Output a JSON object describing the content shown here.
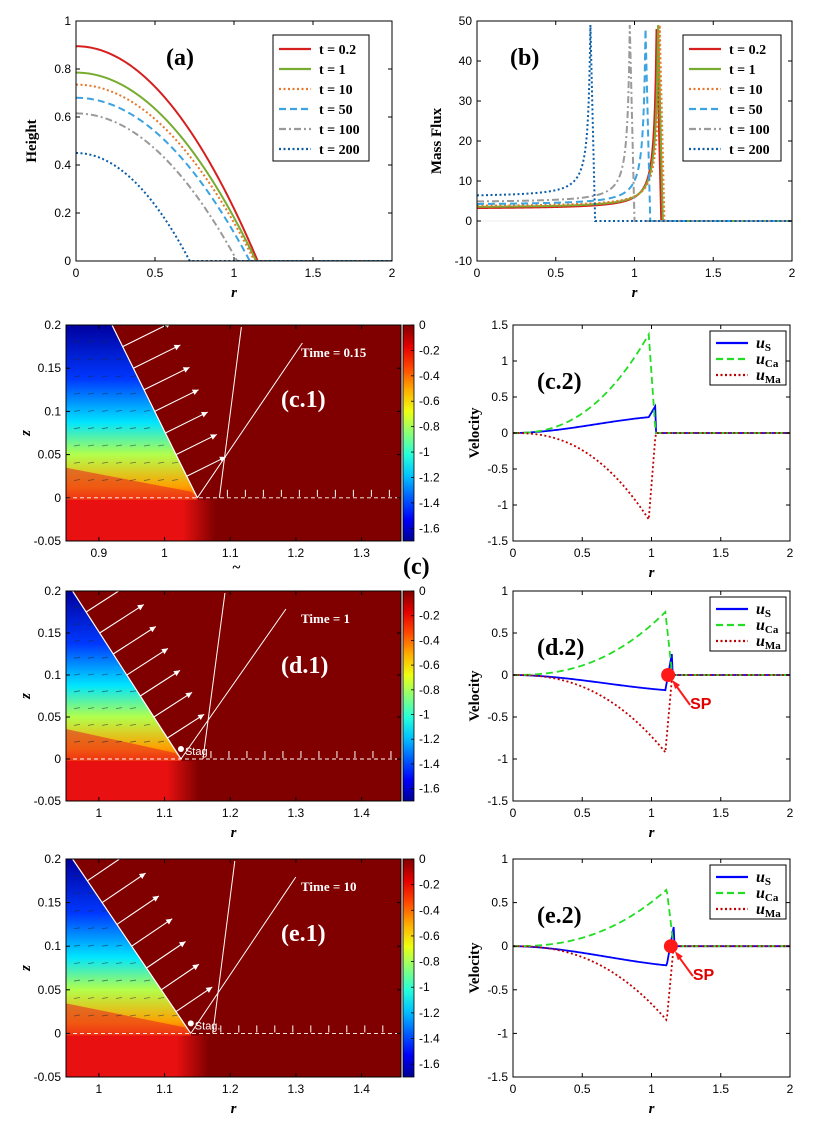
{
  "figure": {
    "center_label": "(c)",
    "x_label_cutoff": "~"
  },
  "chart_data": [
    {
      "id": "a",
      "type": "line",
      "panel_label": "(a)",
      "xlabel": "r",
      "ylabel": "Height",
      "xlim": [
        0,
        2
      ],
      "ylim": [
        0,
        1
      ],
      "xticks": [
        0,
        0.5,
        1,
        1.5,
        2
      ],
      "yticks": [
        0,
        0.2,
        0.4,
        0.6,
        0.8,
        1
      ],
      "legend_location": "top-right",
      "series": [
        {
          "name": "t = 0.2",
          "color": "#d62020",
          "dash": "solid",
          "h0": 0.895,
          "rc": 1.15
        },
        {
          "name": "t = 1",
          "color": "#77ac30",
          "dash": "solid",
          "h0": 0.785,
          "rc": 1.14
        },
        {
          "name": "t = 10",
          "color": "#e8772b",
          "dash": "dot",
          "h0": 0.735,
          "rc": 1.13
        },
        {
          "name": "t = 50",
          "color": "#3aa3e0",
          "dash": "dash",
          "h0": 0.68,
          "rc": 1.1
        },
        {
          "name": "t = 100",
          "color": "#9a9a9a",
          "dash": "dashdot",
          "h0": 0.615,
          "rc": 1.02
        },
        {
          "name": "t = 200",
          "color": "#0b5ea8",
          "dash": "dot",
          "h0": 0.45,
          "rc": 0.72
        }
      ]
    },
    {
      "id": "b",
      "type": "line",
      "panel_label": "(b)",
      "xlabel": "r",
      "ylabel": "Mass Flux",
      "xlim": [
        0,
        2
      ],
      "ylim": [
        -10,
        50
      ],
      "xticks": [
        0,
        0.5,
        1,
        1.5,
        2
      ],
      "yticks": [
        -10,
        0,
        10,
        20,
        30,
        40,
        50
      ],
      "legend_location": "top-right",
      "series": [
        {
          "name": "t = 0.2",
          "color": "#d62020",
          "dash": "solid",
          "base": 3.0,
          "peak_r": 1.14,
          "peak": 48
        },
        {
          "name": "t = 1",
          "color": "#77ac30",
          "dash": "solid",
          "base": 3.3,
          "peak_r": 1.15,
          "peak": 49
        },
        {
          "name": "t = 10",
          "color": "#e8772b",
          "dash": "dot",
          "base": 3.6,
          "peak_r": 1.16,
          "peak": 49
        },
        {
          "name": "t = 50",
          "color": "#3aa3e0",
          "dash": "dash",
          "base": 4.0,
          "peak_r": 1.07,
          "peak": 48
        },
        {
          "name": "t = 100",
          "color": "#9a9a9a",
          "dash": "dashdot",
          "base": 4.6,
          "peak_r": 0.97,
          "peak": 49
        },
        {
          "name": "t = 200",
          "color": "#0b5ea8",
          "dash": "dot",
          "base": 6.0,
          "peak_r": 0.72,
          "peak": 49
        }
      ]
    },
    {
      "id": "c1",
      "type": "heatmap",
      "panel_label": "(c.1)",
      "time_label": "Time = 0.15",
      "xlabel": "",
      "ylabel": "z",
      "xlim": [
        0.85,
        1.36
      ],
      "ylim": [
        -0.05,
        0.2
      ],
      "xticks": [
        0.9,
        1,
        1.1,
        1.2,
        1.3
      ],
      "yticks": [
        -0.05,
        0,
        0.05,
        0.1,
        0.15,
        0.2
      ],
      "contact_r": 1.05,
      "top_r": 0.92,
      "stag_label": "",
      "colorbar": {
        "ticks": [
          0,
          -0.2,
          -0.4,
          -0.6,
          -0.8,
          -1,
          -1.2,
          -1.4,
          -1.6
        ],
        "range": [
          -1.7,
          0
        ]
      }
    },
    {
      "id": "c2",
      "type": "line",
      "panel_label": "(c.2)",
      "xlabel": "r",
      "ylabel": "Velocity",
      "xlim": [
        0,
        2
      ],
      "ylim": [
        -1.5,
        1.5
      ],
      "xticks": [
        0,
        0.5,
        1,
        1.5,
        2
      ],
      "yticks": [
        -1.5,
        -1,
        -0.5,
        0,
        0.5,
        1,
        1.5
      ],
      "legend_location": "top-right",
      "rc": 1.03,
      "sp": null,
      "series": [
        {
          "name": "u",
          "sub": "S",
          "color": "#0000ff",
          "dash": "solid",
          "extreme": 0.22,
          "end": 0.38
        },
        {
          "name": "u",
          "sub": "Ca",
          "color": "#22dd22",
          "dash": "dash",
          "extreme": 1.37,
          "end": 1.37
        },
        {
          "name": "u",
          "sub": "Ma",
          "color": "#c00000",
          "dash": "dot",
          "extreme": -1.2,
          "end": -1.2
        }
      ]
    },
    {
      "id": "d1",
      "type": "heatmap",
      "panel_label": "(d.1)",
      "time_label": "Time = 1",
      "xlabel": "r",
      "ylabel": "z",
      "xlim": [
        0.95,
        1.46
      ],
      "ylim": [
        -0.05,
        0.2
      ],
      "xticks": [
        1,
        1.1,
        1.2,
        1.3,
        1.4
      ],
      "yticks": [
        -0.05,
        0,
        0.05,
        0.1,
        0.15,
        0.2
      ],
      "contact_r": 1.125,
      "top_r": 0.96,
      "stag_label": "Stag",
      "colorbar": {
        "ticks": [
          0,
          -0.2,
          -0.4,
          -0.6,
          -0.8,
          -1,
          -1.2,
          -1.4,
          -1.6
        ],
        "range": [
          -1.7,
          0
        ]
      }
    },
    {
      "id": "d2",
      "type": "line",
      "panel_label": "(d.2)",
      "xlabel": "r",
      "ylabel": "Velocity",
      "xlim": [
        0,
        2
      ],
      "ylim": [
        -1.5,
        1
      ],
      "xticks": [
        0,
        0.5,
        1,
        1.5,
        2
      ],
      "yticks": [
        -1.5,
        -1,
        -0.5,
        0,
        0.5,
        1
      ],
      "legend_location": "top-right",
      "rc": 1.15,
      "sp": {
        "r": 1.12,
        "v": 0,
        "label": "SP"
      },
      "series": [
        {
          "name": "u",
          "sub": "S",
          "color": "#0000ff",
          "dash": "solid",
          "extreme": -0.18,
          "end": 0.28
        },
        {
          "name": "u",
          "sub": "Ca",
          "color": "#22dd22",
          "dash": "dash",
          "extreme": 0.75,
          "end": 0.75
        },
        {
          "name": "u",
          "sub": "Ma",
          "color": "#c00000",
          "dash": "dot",
          "extreme": -0.92,
          "end": -0.92
        }
      ]
    },
    {
      "id": "e1",
      "type": "heatmap",
      "panel_label": "(e.1)",
      "time_label": "Time = 10",
      "xlabel": "r",
      "ylabel": "z",
      "xlim": [
        0.95,
        1.46
      ],
      "ylim": [
        -0.05,
        0.2
      ],
      "xticks": [
        1,
        1.1,
        1.2,
        1.3,
        1.4
      ],
      "yticks": [
        -0.05,
        0,
        0.05,
        0.1,
        0.15,
        0.2
      ],
      "contact_r": 1.14,
      "top_r": 0.96,
      "stag_label": "Stag.",
      "colorbar": {
        "ticks": [
          0,
          -0.2,
          -0.4,
          -0.6,
          -0.8,
          -1,
          -1.2,
          -1.4,
          -1.6
        ],
        "range": [
          -1.7,
          0
        ]
      }
    },
    {
      "id": "e2",
      "type": "line",
      "panel_label": "(e.2)",
      "xlabel": "r",
      "ylabel": "Velocity",
      "xlim": [
        0,
        2
      ],
      "ylim": [
        -1.5,
        1
      ],
      "xticks": [
        0,
        0.5,
        1,
        1.5,
        2
      ],
      "yticks": [
        -1.5,
        -1,
        -0.5,
        0,
        0.5,
        1
      ],
      "legend_location": "top-right",
      "rc": 1.16,
      "sp": {
        "r": 1.14,
        "v": 0,
        "label": "SP"
      },
      "series": [
        {
          "name": "u",
          "sub": "S",
          "color": "#0000ff",
          "dash": "solid",
          "extreme": -0.22,
          "end": 0.22
        },
        {
          "name": "u",
          "sub": "Ca",
          "color": "#22dd22",
          "dash": "dash",
          "extreme": 0.65,
          "end": 0.65
        },
        {
          "name": "u",
          "sub": "Ma",
          "color": "#c00000",
          "dash": "dot",
          "extreme": -0.85,
          "end": -0.85
        }
      ]
    }
  ]
}
